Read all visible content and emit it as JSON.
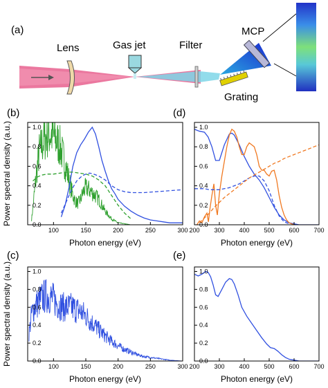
{
  "setup": {
    "panel": "(a)",
    "labels": {
      "lens": "Lens",
      "gas_jet": "Gas jet",
      "filter": "Filter",
      "mcp": "MCP",
      "grating": "Grating"
    },
    "colors": {
      "beam": "#e8608e",
      "xuv": "#7fd6e8",
      "mcp_screen": "#3a4fd8",
      "grating": "#e0d000"
    }
  },
  "chart_data": [
    {
      "panel": "(b)",
      "type": "line",
      "xlabel": "Photon energy (eV)",
      "ylabel": "Power spectral density (a.u.)",
      "xlim": [
        60,
        300
      ],
      "ylim": [
        0,
        1.05
      ],
      "xticks": [
        100,
        150,
        200,
        250,
        300
      ],
      "yticks": [
        0.0,
        0.2,
        0.4,
        0.6,
        0.8,
        1.0
      ],
      "series": [
        {
          "color": "#2ea02e",
          "style": "solid",
          "noisy": true,
          "x": [
            66,
            70,
            74,
            78,
            82,
            86,
            90,
            94,
            98,
            102,
            106,
            110,
            114,
            118,
            122,
            126,
            130,
            134,
            138,
            142,
            146,
            150,
            155,
            160,
            165,
            170,
            175,
            180,
            190,
            200,
            210,
            220,
            230
          ],
          "y": [
            0.05,
            0.3,
            0.55,
            0.75,
            0.82,
            0.88,
            0.92,
            0.93,
            0.92,
            0.89,
            0.85,
            0.8,
            0.72,
            0.62,
            0.52,
            0.4,
            0.3,
            0.24,
            0.22,
            0.26,
            0.34,
            0.38,
            0.36,
            0.33,
            0.3,
            0.26,
            0.2,
            0.14,
            0.06,
            0.02,
            0.01,
            0.0,
            0.0
          ]
        },
        {
          "color": "#3050e0",
          "style": "solid",
          "noisy": false,
          "x": [
            112,
            118,
            124,
            130,
            136,
            142,
            148,
            154,
            160,
            165,
            170,
            175,
            180,
            185,
            190,
            195,
            200,
            210,
            220,
            230,
            240,
            250,
            260,
            270,
            280,
            290,
            300
          ],
          "y": [
            0.08,
            0.2,
            0.38,
            0.6,
            0.74,
            0.82,
            0.88,
            0.95,
            1.0,
            0.93,
            0.8,
            0.66,
            0.55,
            0.45,
            0.37,
            0.32,
            0.26,
            0.19,
            0.14,
            0.1,
            0.07,
            0.05,
            0.04,
            0.03,
            0.02,
            0.02,
            0.02
          ]
        },
        {
          "color": "#2ea02e",
          "style": "dashed",
          "noisy": false,
          "x": [
            68,
            75,
            82,
            90,
            100,
            110,
            120,
            130,
            140,
            150,
            160,
            170,
            180,
            190,
            200,
            210,
            220
          ],
          "y": [
            0.45,
            0.49,
            0.51,
            0.52,
            0.52,
            0.53,
            0.54,
            0.54,
            0.53,
            0.52,
            0.5,
            0.46,
            0.4,
            0.3,
            0.2,
            0.12,
            0.06
          ]
        },
        {
          "color": "#3050e0",
          "style": "dashed",
          "noisy": false,
          "x": [
            112,
            120,
            128,
            136,
            144,
            150,
            156,
            162,
            170,
            180,
            190,
            200,
            210,
            220,
            240,
            260,
            280,
            300
          ],
          "y": [
            0.12,
            0.24,
            0.36,
            0.45,
            0.5,
            0.52,
            0.53,
            0.52,
            0.5,
            0.46,
            0.4,
            0.36,
            0.34,
            0.33,
            0.33,
            0.34,
            0.35,
            0.36
          ]
        }
      ]
    },
    {
      "panel": "(c)",
      "type": "line",
      "xlabel": "Photon energy (eV)",
      "ylabel": "Power spectral density (a.u.)",
      "xlim": [
        60,
        300
      ],
      "ylim": [
        0,
        1.05
      ],
      "xticks": [
        100,
        150,
        200,
        250,
        300
      ],
      "yticks": [
        0.0,
        0.2,
        0.4,
        0.6,
        0.8,
        1.0
      ],
      "series": [
        {
          "color": "#3050e0",
          "style": "solid",
          "noisy": true,
          "x": [
            62,
            66,
            70,
            74,
            78,
            82,
            86,
            90,
            94,
            98,
            102,
            106,
            110,
            116,
            122,
            128,
            134,
            140,
            146,
            152,
            158,
            164,
            170,
            180,
            190,
            200,
            210,
            220,
            230,
            240,
            250,
            260,
            270,
            280,
            290,
            300
          ],
          "y": [
            0.3,
            0.52,
            0.6,
            0.64,
            0.67,
            0.7,
            0.72,
            0.73,
            0.72,
            0.7,
            0.67,
            0.64,
            0.62,
            0.6,
            0.6,
            0.6,
            0.58,
            0.56,
            0.53,
            0.49,
            0.44,
            0.4,
            0.35,
            0.28,
            0.22,
            0.17,
            0.13,
            0.1,
            0.07,
            0.05,
            0.04,
            0.03,
            0.02,
            0.01,
            0.005,
            0.0
          ]
        }
      ]
    },
    {
      "panel": "(d)",
      "type": "line",
      "xlabel": "Photon energy (eV)",
      "ylabel": "",
      "xlim": [
        200,
        700
      ],
      "ylim": [
        0,
        1.05
      ],
      "xticks": [
        200,
        300,
        400,
        500,
        600,
        700
      ],
      "yticks": [
        0.0,
        0.2,
        0.4,
        0.6,
        0.8,
        1.0
      ],
      "series": [
        {
          "color": "#3050e0",
          "style": "solid",
          "noisy": false,
          "x": [
            200,
            220,
            240,
            255,
            270,
            285,
            300,
            320,
            340,
            350,
            360,
            380,
            400,
            420,
            440,
            460,
            480,
            500,
            520,
            540,
            560,
            580,
            600,
            620,
            640,
            660,
            680,
            700
          ],
          "y": [
            0.98,
            0.96,
            0.95,
            0.9,
            0.8,
            0.66,
            0.66,
            0.82,
            0.93,
            0.94,
            0.92,
            0.82,
            0.7,
            0.6,
            0.52,
            0.46,
            0.38,
            0.28,
            0.18,
            0.1,
            0.05,
            0.02,
            0.01,
            0.0,
            0.0,
            0.0,
            0.0,
            0.0
          ]
        },
        {
          "color": "#f07820",
          "style": "solid",
          "noisy": false,
          "x": [
            210,
            220,
            230,
            240,
            250,
            256,
            262,
            270,
            278,
            285,
            292,
            300,
            310,
            320,
            330,
            340,
            350,
            360,
            370,
            380,
            390,
            400,
            410,
            420,
            430,
            440,
            450,
            460,
            470,
            480,
            490,
            500,
            510,
            520,
            530,
            540,
            550,
            560,
            570,
            580,
            590,
            600
          ],
          "y": [
            0.0,
            0.04,
            0.02,
            0.08,
            0.12,
            0.03,
            0.16,
            0.3,
            0.42,
            0.2,
            0.1,
            0.32,
            0.5,
            0.65,
            0.8,
            0.92,
            0.98,
            0.96,
            0.9,
            0.8,
            0.72,
            0.72,
            0.8,
            0.84,
            0.82,
            0.8,
            0.72,
            0.6,
            0.56,
            0.56,
            0.52,
            0.5,
            0.55,
            0.56,
            0.46,
            0.3,
            0.18,
            0.1,
            0.05,
            0.02,
            0.01,
            0.0
          ]
        },
        {
          "color": "#3050e0",
          "style": "dashed",
          "noisy": false,
          "x": [
            200,
            220,
            240,
            260,
            280,
            300,
            320,
            340,
            360,
            380,
            400,
            420,
            440,
            460,
            480,
            500,
            520,
            540,
            560,
            580
          ],
          "y": [
            0.37,
            0.37,
            0.37,
            0.36,
            0.36,
            0.36,
            0.37,
            0.38,
            0.4,
            0.42,
            0.45,
            0.48,
            0.5,
            0.5,
            0.45,
            0.35,
            0.2,
            0.09,
            0.03,
            0.01
          ]
        },
        {
          "color": "#f07820",
          "style": "dashed",
          "noisy": false,
          "x": [
            220,
            240,
            260,
            280,
            300,
            320,
            340,
            360,
            380,
            400,
            420,
            440,
            460,
            480,
            500,
            520,
            540,
            560,
            580,
            600,
            620,
            640,
            660,
            680,
            700
          ],
          "y": [
            0.02,
            0.07,
            0.12,
            0.18,
            0.23,
            0.28,
            0.32,
            0.36,
            0.4,
            0.44,
            0.48,
            0.51,
            0.54,
            0.57,
            0.6,
            0.63,
            0.65,
            0.68,
            0.7,
            0.72,
            0.74,
            0.76,
            0.78,
            0.8,
            0.82
          ]
        }
      ]
    },
    {
      "panel": "(e)",
      "type": "line",
      "xlabel": "Photon energy (eV)",
      "ylabel": "",
      "xlim": [
        200,
        700
      ],
      "ylim": [
        0,
        1.05
      ],
      "xticks": [
        200,
        300,
        400,
        500,
        600,
        700
      ],
      "yticks": [
        0.0,
        0.2,
        0.4,
        0.6,
        0.8,
        1.0
      ],
      "series": [
        {
          "color": "#3050e0",
          "style": "solid",
          "noisy": false,
          "x": [
            200,
            215,
            230,
            245,
            255,
            265,
            275,
            285,
            295,
            310,
            325,
            340,
            350,
            360,
            375,
            390,
            410,
            430,
            450,
            470,
            490,
            505,
            520,
            535,
            550,
            565,
            580,
            600,
            620,
            650,
            700
          ],
          "y": [
            0.97,
            0.95,
            0.97,
            1.0,
            0.99,
            0.94,
            0.85,
            0.74,
            0.72,
            0.8,
            0.88,
            0.92,
            0.91,
            0.86,
            0.74,
            0.6,
            0.5,
            0.42,
            0.34,
            0.26,
            0.19,
            0.15,
            0.14,
            0.11,
            0.07,
            0.04,
            0.02,
            0.01,
            0.0,
            0.0,
            0.0
          ]
        }
      ]
    }
  ]
}
